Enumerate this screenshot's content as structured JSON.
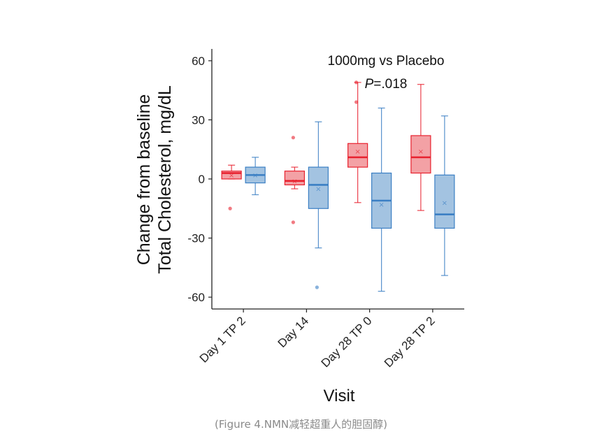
{
  "caption": "(Figure 4.NMN减轻超重人的胆固醇)",
  "chart_data": {
    "type": "box",
    "title": "",
    "annotation": {
      "line1": "1000mg vs Placebo",
      "p_prefix": "P",
      "p_suffix": "=.018"
    },
    "xlabel": "Visit",
    "ylabel_lines": [
      "Change from baseline",
      "Total Cholesterol, mg/dL"
    ],
    "ylim": [
      -66,
      66
    ],
    "yticks": [
      -60,
      -30,
      0,
      30,
      60
    ],
    "categories": [
      "Day 1 TP 2",
      "Day 14",
      "Day 28 TP 0",
      "Day 28 TP 2"
    ],
    "grid": false,
    "series": [
      {
        "color": "#e8212e",
        "fill": "#f19095",
        "boxes": [
          {
            "q1": 0,
            "median": 3,
            "q3": 4,
            "whisker_low": 0,
            "whisker_high": 7,
            "mean": 2,
            "outliers": [
              -15
            ]
          },
          {
            "q1": -3,
            "median": -1,
            "q3": 4,
            "whisker_low": -5,
            "whisker_high": 6,
            "mean": -1,
            "outliers": [
              21,
              -22
            ]
          },
          {
            "q1": 6,
            "median": 11,
            "q3": 18,
            "whisker_low": -12,
            "whisker_high": 49,
            "mean": 14,
            "outliers": [
              49,
              39
            ]
          },
          {
            "q1": 3,
            "median": 11,
            "q3": 22,
            "whisker_low": -16,
            "whisker_high": 48,
            "mean": 14,
            "outliers": []
          }
        ]
      },
      {
        "color": "#3b7fc4",
        "fill": "#93b8dc",
        "boxes": [
          {
            "q1": -2,
            "median": 2,
            "q3": 6,
            "whisker_low": -8,
            "whisker_high": 11,
            "mean": 2,
            "outliers": []
          },
          {
            "q1": -15,
            "median": -3,
            "q3": 6,
            "whisker_low": -35,
            "whisker_high": 29,
            "mean": -5,
            "outliers": [
              -55
            ]
          },
          {
            "q1": -25,
            "median": -11,
            "q3": 3,
            "whisker_low": -57,
            "whisker_high": 36,
            "mean": -13,
            "outliers": []
          },
          {
            "q1": -25,
            "median": -18,
            "q3": 2,
            "whisker_low": -49,
            "whisker_high": 32,
            "mean": -12,
            "outliers": []
          }
        ]
      }
    ]
  }
}
